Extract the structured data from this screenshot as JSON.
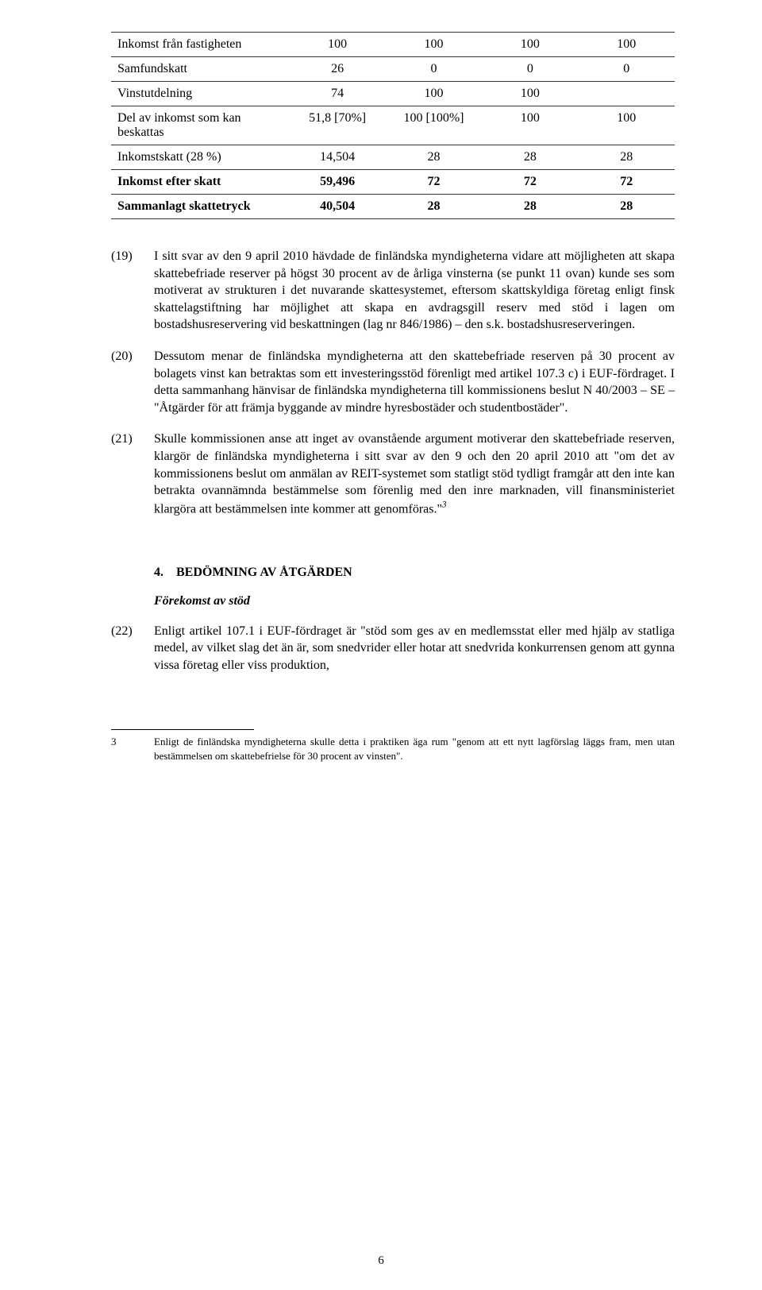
{
  "table": {
    "rows": [
      {
        "label": "Inkomst från fastigheten",
        "c1": "100",
        "c2": "100",
        "c3": "100",
        "c4": "100",
        "bold": false,
        "top": true
      },
      {
        "label": "Samfundskatt",
        "c1": "26",
        "c2": "0",
        "c3": "0",
        "c4": "0",
        "bold": false,
        "top": true
      },
      {
        "label": "Vinstutdelning",
        "c1": "74",
        "c2": "100",
        "c3": "100",
        "c4": "",
        "bold": false,
        "top": true
      },
      {
        "label": "Del av inkomst som kan beskattas",
        "c1": "51,8 [70%]",
        "c2": "100 [100%]",
        "c3": "100",
        "c4": "100",
        "bold": false,
        "top": true
      },
      {
        "label": "Inkomstskatt (28 %)",
        "c1": "14,504",
        "c2": "28",
        "c3": "28",
        "c4": "28",
        "bold": false,
        "top": true,
        "bottom": true
      },
      {
        "label": "Inkomst efter skatt",
        "c1": "59,496",
        "c2": "72",
        "c3": "72",
        "c4": "72",
        "bold": true,
        "top": false
      },
      {
        "label": "Sammanlagt skattetryck",
        "c1": "40,504",
        "c2": "28",
        "c3": "28",
        "c4": "28",
        "bold": true,
        "top": true,
        "bottom": true
      }
    ]
  },
  "paragraphs": [
    {
      "num": "(19)",
      "text": "I sitt svar av den 9 april 2010 hävdade de finländska myndigheterna vidare att möjligheten att skapa skattebefriade reserver på högst 30 procent av de årliga vinsterna (se punkt 11 ovan) kunde ses som motiverat av strukturen i det nuvarande skattesystemet, eftersom skattskyldiga företag enligt finsk skattelagstiftning har möjlighet att skapa en avdragsgill reserv med stöd i lagen om bostadshusreservering vid beskattningen (lag nr 846/1986) – den s.k. bostadshusreserveringen."
    },
    {
      "num": "(20)",
      "text": "Dessutom menar de finländska myndigheterna att den skattebefriade reserven på 30 procent av bolagets vinst kan betraktas som ett investeringsstöd förenligt med artikel 107.3 c) i EUF-fördraget. I detta sammanhang hänvisar de finländska myndigheterna till kommissionens beslut N 40/2003 – SE – \"Åtgärder för att främja byggande av mindre hyresbostäder och studentbostäder\"."
    },
    {
      "num": "(21)",
      "text_html": "Skulle kommissionen anse att inget av ovanstående argument motiverar den skattebefriade reserven, klargör de finländska myndigheterna i sitt svar av den 9 och den 20 april 2010 att \"om det av kommissionens beslut om anmälan av REIT-systemet som statligt stöd tydligt framgår att den inte kan betrakta ovannämnda bestämmelse som förenlig med den inre marknaden, vill finansministeriet klargöra att bestämmelsen inte kommer att genomföras.\"<span class=\"italic\"><sup>3</sup></span>"
    }
  ],
  "section_number": "4.",
  "section_title": "BEDÖMNING AV ÅTGÄRDEN",
  "section_sub": "Förekomst av stöd",
  "para22": {
    "num": "(22)",
    "text": "Enligt artikel 107.1 i EUF-fördraget är \"stöd som ges av en medlemsstat eller med hjälp av statliga medel, av vilket slag det än är, som snedvrider eller hotar att snedvrida konkurrensen genom att gynna vissa företag eller viss produktion,"
  },
  "footnote": {
    "num": "3",
    "text": "Enligt de finländska myndigheterna skulle detta i praktiken äga rum \"genom att ett nytt lagförslag läggs fram, men utan bestämmelsen om skattebefrielse för 30 procent av vinsten\"."
  },
  "page_number": "6"
}
